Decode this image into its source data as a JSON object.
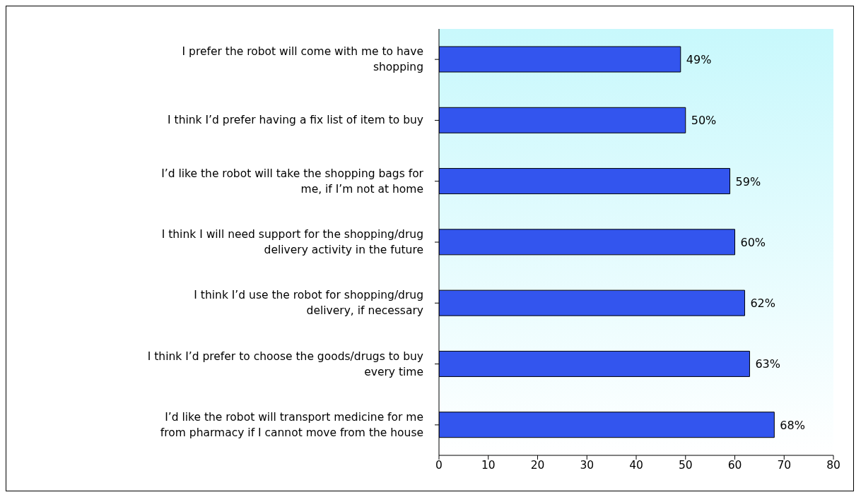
{
  "chart_data": {
    "type": "bar",
    "orientation": "horizontal",
    "categories": [
      "I prefer the robot will come with me to have shopping",
      "I think I’d prefer having a fix list of item to buy",
      "I’d like the robot will take the shopping bags for me, if I’m not at home",
      "I think I will need support for the shopping/drug delivery activity in the future",
      "I think I’d use the robot for shopping/drug delivery, if necessary",
      "I think I’d prefer to choose the goods/drugs to buy every time",
      "I’d like the robot will transport medicine for me from pharmacy if I cannot move from the house"
    ],
    "values": [
      49,
      50,
      59,
      60,
      62,
      63,
      68
    ],
    "value_labels": [
      "49%",
      "50%",
      "59%",
      "60%",
      "62%",
      "63%",
      "68%"
    ],
    "color": "#3355ee",
    "xlim": [
      0,
      80
    ],
    "xticks": [
      0,
      10,
      20,
      30,
      40,
      50,
      60,
      70,
      80
    ],
    "grid": false,
    "legend": false
  }
}
